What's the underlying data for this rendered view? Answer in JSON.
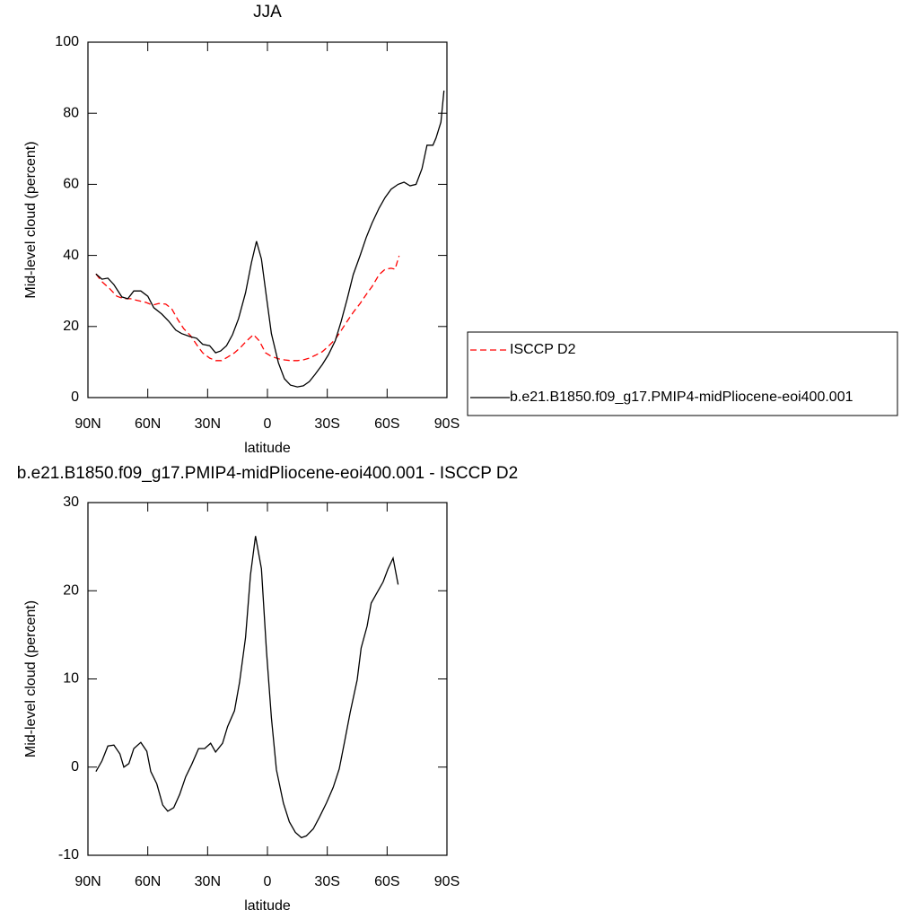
{
  "chart_data": [
    {
      "type": "line",
      "title": "JJA",
      "xlabel": "latitude",
      "ylabel": "Mid-level cloud (percent)",
      "xlim": [
        90,
        -90
      ],
      "xticks": [
        {
          "value": 90,
          "label": "90N"
        },
        {
          "value": 60,
          "label": "60N"
        },
        {
          "value": 30,
          "label": "30N"
        },
        0,
        {
          "value": -30,
          "label": "30S"
        },
        {
          "value": -60,
          "label": "60S"
        },
        {
          "value": -90,
          "label": "90S"
        }
      ],
      "ylim": [
        0,
        100
      ],
      "yticks": [
        0,
        20,
        40,
        60,
        80,
        100
      ],
      "legend": "right",
      "series": [
        {
          "name": "ISCCP D2",
          "color": "#ff0000",
          "dash": true,
          "x": [
            86,
            83,
            79,
            75.5,
            72,
            68.5,
            65,
            61,
            57.5,
            54.5,
            51,
            48,
            45,
            42,
            38.5,
            35.5,
            32.5,
            29,
            26,
            23,
            20,
            16.5,
            13.5,
            10.5,
            7,
            4,
            1,
            -2,
            -5.5,
            -8.5,
            -11.5,
            -15,
            -18,
            -21,
            -24,
            -27.5,
            -30.5,
            -34,
            -37,
            -40,
            -43,
            -46.5,
            -49.5,
            -52.5,
            -56,
            -59,
            -62,
            -64,
            -66
          ],
          "values": [
            34.8,
            32.6,
            30.6,
            28.5,
            27.8,
            27.8,
            27.3,
            26.8,
            26,
            26.5,
            26.3,
            25,
            22,
            19.4,
            17.4,
            14.9,
            12.6,
            11.1,
            10.4,
            10.4,
            11.4,
            12.6,
            14.1,
            15.9,
            17.7,
            15.9,
            12.6,
            11.6,
            10.9,
            10.6,
            10.4,
            10.4,
            10.6,
            11.1,
            11.9,
            12.9,
            14.4,
            16.4,
            18.9,
            21.5,
            24,
            26.5,
            29,
            31.3,
            34.6,
            36.1,
            36.4,
            36.1,
            39.9
          ]
        },
        {
          "name": "b.e21.B1850.f09_g17.PMIP4-midPliocene-eoi400.001",
          "color": "#000000",
          "dash": false,
          "x": [
            86,
            83,
            80,
            77,
            73,
            70,
            67,
            63.5,
            60,
            57,
            53,
            49.5,
            46,
            43,
            39,
            35.5,
            32.5,
            29,
            26,
            23.5,
            20.5,
            17.5,
            14.5,
            11,
            8,
            5.5,
            3,
            0.5,
            -2,
            -5.5,
            -8.5,
            -11.5,
            -15,
            -18,
            -21,
            -24,
            -27.5,
            -30.5,
            -34,
            -37,
            -40,
            -43,
            -46.5,
            -49.5,
            -52.5,
            -56,
            -59,
            -62,
            -65.5,
            -68.5,
            -71.5,
            -74.5,
            -77.5,
            -80,
            -83,
            -84.5,
            -87,
            -88.5
          ],
          "values": [
            34.8,
            33.3,
            33.6,
            31.8,
            28.3,
            27.8,
            30,
            30,
            28.5,
            25.3,
            23.5,
            21.5,
            19,
            18,
            17.2,
            16.7,
            15,
            14.6,
            12.6,
            13.1,
            14.6,
            17.7,
            22.2,
            29.5,
            38,
            44,
            39,
            28.3,
            18,
            9.8,
            5.3,
            3.5,
            3,
            3.3,
            4.5,
            6.6,
            9.3,
            12,
            16,
            21.5,
            27.8,
            34.6,
            40,
            45,
            49.2,
            53.3,
            56.3,
            58.6,
            60,
            60.6,
            59.6,
            60,
            64.4,
            71,
            71,
            73,
            77.5,
            86.4
          ]
        }
      ]
    },
    {
      "type": "line",
      "title": "b.e21.B1850.f09_g17.PMIP4-midPliocene-eoi400.001 - ISCCP D2",
      "xlabel": "latitude",
      "ylabel": "Mid-level cloud (percent)",
      "xlim": [
        90,
        -90
      ],
      "xticks": [
        {
          "value": 90,
          "label": "90N"
        },
        {
          "value": 60,
          "label": "60N"
        },
        {
          "value": 30,
          "label": "30N"
        },
        0,
        {
          "value": -30,
          "label": "30S"
        },
        {
          "value": -60,
          "label": "60S"
        },
        {
          "value": -90,
          "label": "90S"
        }
      ],
      "ylim": [
        -10,
        30
      ],
      "yticks": [
        -10,
        0,
        10,
        20,
        30
      ],
      "series": [
        {
          "color": "#000000",
          "dash": false,
          "x": [
            86,
            83,
            80,
            77,
            74,
            72,
            69.5,
            67,
            63.5,
            60.5,
            58.5,
            55.5,
            52.5,
            50,
            47,
            44,
            41,
            38,
            34.5,
            31.5,
            28.5,
            26,
            22.5,
            20,
            16.5,
            14,
            11,
            8.5,
            6,
            3,
            0.5,
            -2,
            -4.5,
            -8,
            -11,
            -14,
            -17,
            -19.5,
            -23,
            -26,
            -29.5,
            -33,
            -36,
            -38.5,
            -41.5,
            -45,
            -47,
            -50,
            -52,
            -54.5,
            -58,
            -60.5,
            -63,
            -65.5
          ],
          "values": [
            -0.5,
            0.7,
            2.4,
            2.5,
            1.5,
            0,
            0.4,
            2.1,
            2.8,
            1.8,
            -0.5,
            -1.9,
            -4.3,
            -5,
            -4.6,
            -3.1,
            -1.1,
            0.3,
            2.1,
            2.1,
            2.7,
            1.7,
            2.7,
            4.6,
            6.4,
            9.6,
            14.7,
            21.8,
            26.2,
            22.5,
            13.2,
            5.6,
            -0.3,
            -4.1,
            -6.2,
            -7.4,
            -8,
            -7.8,
            -7,
            -5.7,
            -4.1,
            -2.3,
            -0.2,
            2.7,
            6.2,
            9.9,
            13.5,
            16,
            18.6,
            19.6,
            21,
            22.5,
            23.7,
            20.7
          ]
        }
      ]
    }
  ]
}
